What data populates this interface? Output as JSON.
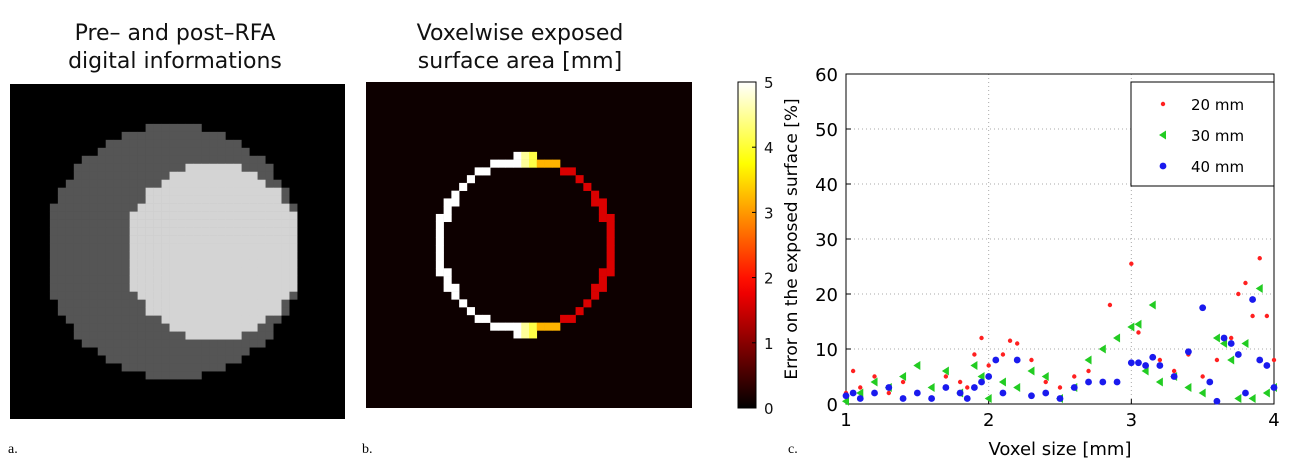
{
  "panels": {
    "a": {
      "title": "Pre– and post–RFA\ndigital informations",
      "label": "a.",
      "colors": {
        "background": "#000000",
        "pre_rfa": "#555555",
        "post_rfa": "#d4d4d4"
      }
    },
    "b": {
      "title": "Voxelwise exposed\nsurface area [mm]",
      "label": "b.",
      "colorbar": {
        "min": 0,
        "max": 5,
        "ticks": [
          "0",
          "1",
          "2",
          "3",
          "4",
          "5"
        ],
        "colormap": "hot"
      }
    },
    "c": {
      "label": "c."
    }
  },
  "chart_data": {
    "type": "scatter",
    "xlabel": "Voxel size [mm]",
    "ylabel": "Error on the exposed surface [%]",
    "xlim": [
      1,
      4
    ],
    "ylim": [
      0,
      60
    ],
    "xticks": [
      "1",
      "2",
      "3",
      "4"
    ],
    "yticks": [
      "0",
      "10",
      "20",
      "30",
      "40",
      "50",
      "60"
    ],
    "grid": true,
    "legend_position": "top-right",
    "series": [
      {
        "name": "20 mm",
        "color": "#ff2020",
        "marker": "dot",
        "points": [
          [
            1.0,
            2
          ],
          [
            1.05,
            6
          ],
          [
            1.1,
            3
          ],
          [
            1.2,
            5
          ],
          [
            1.3,
            2
          ],
          [
            1.4,
            4
          ],
          [
            1.5,
            7
          ],
          [
            1.6,
            3
          ],
          [
            1.7,
            5
          ],
          [
            1.8,
            4
          ],
          [
            1.85,
            3
          ],
          [
            1.9,
            9
          ],
          [
            1.95,
            12
          ],
          [
            2.0,
            7
          ],
          [
            2.1,
            9
          ],
          [
            2.15,
            11.5
          ],
          [
            2.2,
            11
          ],
          [
            2.3,
            8
          ],
          [
            2.4,
            4
          ],
          [
            2.5,
            3
          ],
          [
            2.6,
            5
          ],
          [
            2.7,
            6
          ],
          [
            2.8,
            10
          ],
          [
            2.85,
            18
          ],
          [
            2.9,
            12
          ],
          [
            3.0,
            25.5
          ],
          [
            3.05,
            13
          ],
          [
            3.1,
            7
          ],
          [
            3.2,
            8
          ],
          [
            3.3,
            6
          ],
          [
            3.4,
            9
          ],
          [
            3.5,
            5
          ],
          [
            3.6,
            8
          ],
          [
            3.7,
            12
          ],
          [
            3.75,
            20
          ],
          [
            3.8,
            22
          ],
          [
            3.85,
            16
          ],
          [
            3.9,
            26.5
          ],
          [
            3.95,
            16
          ],
          [
            4.0,
            8
          ]
        ]
      },
      {
        "name": "30 mm",
        "color": "#22cc22",
        "marker": "triangle",
        "points": [
          [
            1.0,
            0.5
          ],
          [
            1.1,
            2
          ],
          [
            1.2,
            4
          ],
          [
            1.3,
            3
          ],
          [
            1.4,
            5
          ],
          [
            1.5,
            7
          ],
          [
            1.6,
            3
          ],
          [
            1.7,
            6
          ],
          [
            1.8,
            2
          ],
          [
            1.9,
            7
          ],
          [
            1.95,
            5
          ],
          [
            2.0,
            1
          ],
          [
            2.1,
            4
          ],
          [
            2.2,
            3
          ],
          [
            2.3,
            6
          ],
          [
            2.4,
            5
          ],
          [
            2.5,
            1
          ],
          [
            2.6,
            3
          ],
          [
            2.7,
            8
          ],
          [
            2.8,
            10
          ],
          [
            2.9,
            12
          ],
          [
            3.0,
            14
          ],
          [
            3.05,
            14.5
          ],
          [
            3.1,
            6
          ],
          [
            3.15,
            18
          ],
          [
            3.2,
            4
          ],
          [
            3.3,
            5
          ],
          [
            3.4,
            3
          ],
          [
            3.5,
            2
          ],
          [
            3.6,
            12
          ],
          [
            3.65,
            11
          ],
          [
            3.7,
            8
          ],
          [
            3.75,
            1
          ],
          [
            3.8,
            11
          ],
          [
            3.85,
            1
          ],
          [
            3.9,
            21
          ],
          [
            3.95,
            2
          ],
          [
            4.0,
            3
          ]
        ]
      },
      {
        "name": "40 mm",
        "color": "#1a1aee",
        "marker": "dot",
        "points": [
          [
            1.0,
            1.5
          ],
          [
            1.05,
            2
          ],
          [
            1.1,
            1
          ],
          [
            1.2,
            2
          ],
          [
            1.3,
            3
          ],
          [
            1.4,
            1
          ],
          [
            1.5,
            2
          ],
          [
            1.6,
            1
          ],
          [
            1.7,
            3
          ],
          [
            1.8,
            2
          ],
          [
            1.85,
            1
          ],
          [
            1.9,
            3
          ],
          [
            1.95,
            4
          ],
          [
            2.0,
            5
          ],
          [
            2.05,
            8
          ],
          [
            2.1,
            2
          ],
          [
            2.2,
            8
          ],
          [
            2.3,
            1.5
          ],
          [
            2.4,
            2
          ],
          [
            2.5,
            1
          ],
          [
            2.6,
            3
          ],
          [
            2.7,
            4
          ],
          [
            2.8,
            4
          ],
          [
            2.9,
            4
          ],
          [
            3.0,
            7.5
          ],
          [
            3.05,
            7.5
          ],
          [
            3.1,
            7
          ],
          [
            3.15,
            8.5
          ],
          [
            3.2,
            7
          ],
          [
            3.3,
            5
          ],
          [
            3.4,
            9.5
          ],
          [
            3.5,
            17.5
          ],
          [
            3.55,
            4
          ],
          [
            3.6,
            0.5
          ],
          [
            3.65,
            12
          ],
          [
            3.7,
            11
          ],
          [
            3.75,
            9
          ],
          [
            3.8,
            2
          ],
          [
            3.85,
            19
          ],
          [
            3.9,
            8
          ],
          [
            3.95,
            7
          ],
          [
            4.0,
            3
          ]
        ]
      }
    ]
  }
}
